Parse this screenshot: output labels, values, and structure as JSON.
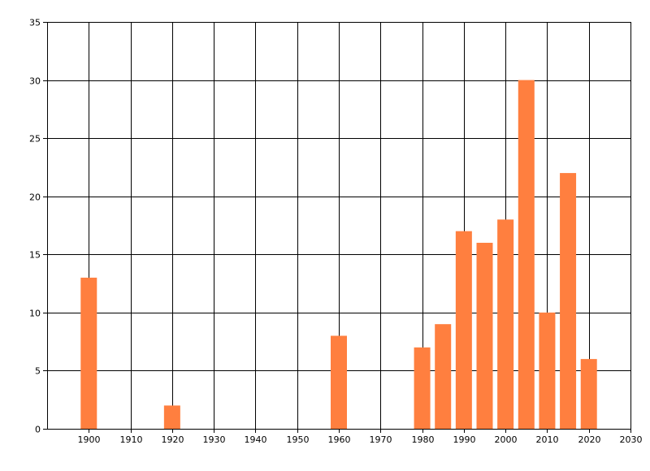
{
  "chart_data": {
    "type": "bar",
    "title": "",
    "xlabel": "",
    "ylabel": "",
    "xlim": [
      1890,
      2030
    ],
    "ylim": [
      0,
      35
    ],
    "x_ticks": [
      1900,
      1910,
      1920,
      1930,
      1940,
      1950,
      1960,
      1970,
      1980,
      1990,
      2000,
      2010,
      2020,
      2030
    ],
    "y_ticks": [
      0,
      5,
      10,
      15,
      20,
      25,
      30,
      35
    ],
    "grid": true,
    "colors": {
      "bar": "#ff7f3f",
      "grid": "#000000",
      "background": "#ffffff"
    },
    "x": [
      1900,
      1920,
      1960,
      1980,
      1985,
      1990,
      1995,
      2000,
      2005,
      2010,
      2015,
      2020
    ],
    "values": [
      13,
      2,
      8,
      7,
      9,
      17,
      16,
      18,
      30,
      10,
      22,
      6
    ]
  }
}
